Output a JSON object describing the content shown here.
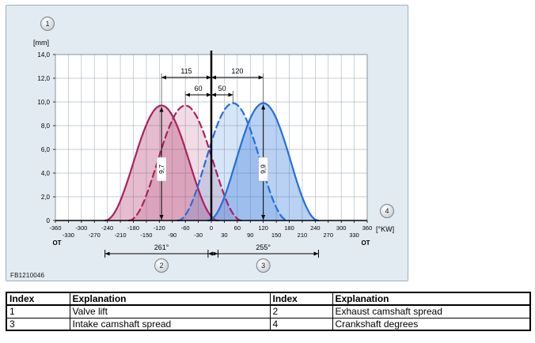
{
  "figure": {
    "code": "FB1210046",
    "y_unit": "[mm]",
    "x_unit": "[°KW]",
    "ot_left": "OT",
    "ot_right": "OT",
    "callouts": {
      "top_left": "1",
      "axis_right": "4"
    }
  },
  "chart_data": {
    "type": "area",
    "title": "",
    "xlabel": "[°KW]",
    "ylabel": "[mm]",
    "xlim": [
      -360,
      360
    ],
    "ylim": [
      0,
      14
    ],
    "grid": true,
    "x_ticks": [
      -360,
      -330,
      -300,
      -270,
      -240,
      -210,
      -180,
      -150,
      -120,
      -90,
      -60,
      -30,
      0,
      30,
      60,
      90,
      120,
      150,
      180,
      210,
      240,
      270,
      300,
      330,
      360
    ],
    "y_ticks": [
      "14,0",
      "12,0",
      "10,0",
      "8,0",
      "6,0",
      "4,0",
      "2,0",
      "0"
    ],
    "series": [
      {
        "name": "exhaust-valve-lift-solid",
        "center": -115,
        "peak": 9.7,
        "duration": 261,
        "style": "solid",
        "color": "#a8235e",
        "fill": "rgba(168,35,94,0.30)"
      },
      {
        "name": "exhaust-valve-lift-dashed",
        "center": -60,
        "peak": 9.7,
        "duration": 261,
        "style": "dashed",
        "color": "#a8235e",
        "fill": "rgba(168,35,94,0.16)"
      },
      {
        "name": "intake-valve-lift-dashed",
        "center": 50,
        "peak": 9.9,
        "duration": 255,
        "style": "dashed",
        "color": "#2470d8",
        "fill": "rgba(36,112,216,0.18)"
      },
      {
        "name": "intake-valve-lift-solid",
        "center": 120,
        "peak": 9.9,
        "duration": 255,
        "style": "solid",
        "color": "#2470d8",
        "fill": "rgba(36,112,216,0.32)"
      }
    ],
    "annotations": {
      "spread_dims": [
        {
          "label": "115",
          "from": -115,
          "to": 0,
          "level": 1
        },
        {
          "label": "120",
          "from": 0,
          "to": 120,
          "level": 1
        },
        {
          "label": "60",
          "from": -60,
          "to": 0,
          "level": 2
        },
        {
          "label": "50",
          "from": 0,
          "to": 50,
          "level": 2
        }
      ],
      "lift_dims": [
        {
          "label": "9,7",
          "x": -115,
          "value": 9.7
        },
        {
          "label": "9,9",
          "x": 120,
          "value": 9.9
        }
      ],
      "duration_dims": [
        {
          "label": "261°",
          "from": -245.5,
          "to": 15.5,
          "callout": "2"
        },
        {
          "label": "255°",
          "from": -7.5,
          "to": 247.5,
          "callout": "3"
        }
      ]
    }
  },
  "table": {
    "headers": [
      "Index",
      "Explanation",
      "Index",
      "Explanation"
    ],
    "rows": [
      [
        "1",
        "Valve lift",
        "2",
        "Exhaust camshaft spread"
      ],
      [
        "3",
        "Intake camshaft spread",
        "4",
        "Crankshaft degrees"
      ]
    ]
  }
}
